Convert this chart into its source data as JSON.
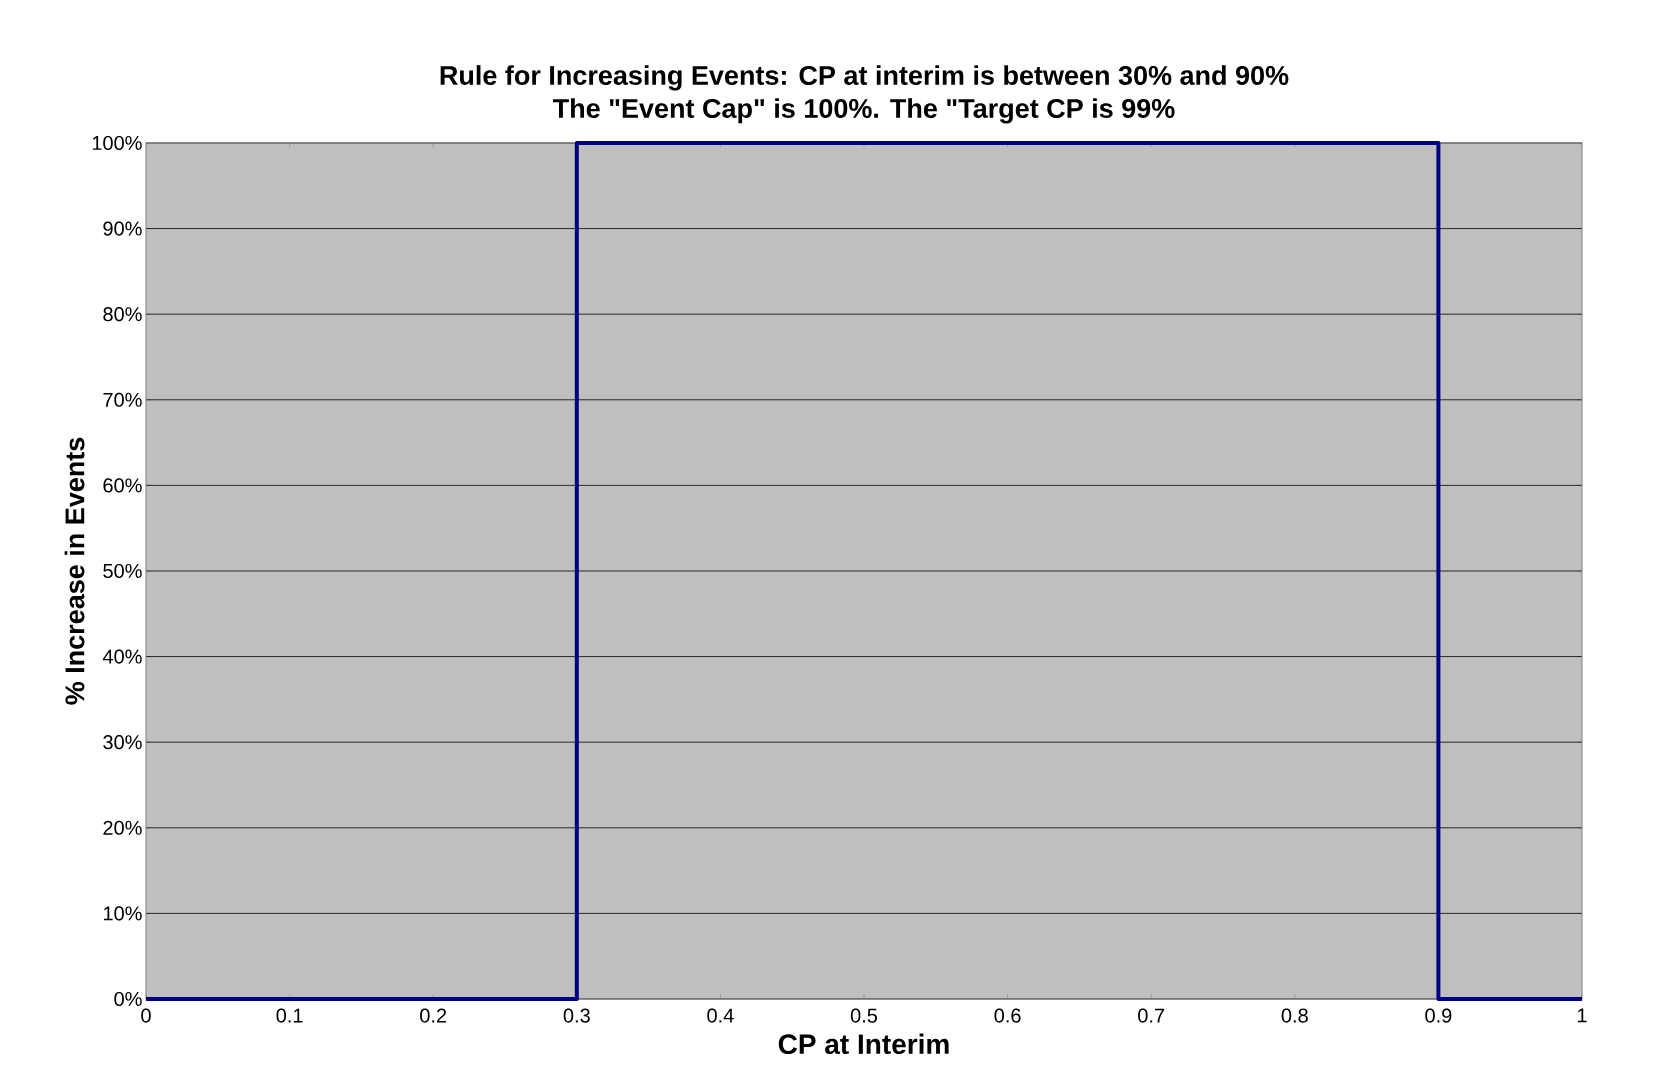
{
  "chart_data": {
    "type": "line",
    "title": "Rule for Increasing Events: CP at interim is between 30% and 90%",
    "subtitle": "The \"Event Cap\" is 100%. The \"Target CP is 99%",
    "xlabel": "CP at Interim",
    "ylabel": "% Increase in Events",
    "x": [
      0,
      0.3,
      0.3,
      0.9,
      0.9,
      1
    ],
    "series": [
      {
        "color": "#000080",
        "values": [
          0,
          0,
          100,
          100,
          0,
          0
        ]
      }
    ],
    "xlim": [
      0,
      1
    ],
    "xticks": [
      0,
      0.1,
      0.2,
      0.3,
      0.4,
      0.5,
      0.6,
      0.7,
      0.8,
      0.9,
      1
    ],
    "ylim": [
      0,
      100
    ],
    "yticks": [
      {
        "value": 0,
        "label": "0%"
      },
      {
        "value": 10,
        "label": "10%"
      },
      {
        "value": 20,
        "label": "20%"
      },
      {
        "value": 30,
        "label": "30%"
      },
      {
        "value": 40,
        "label": "40%"
      },
      {
        "value": 50,
        "label": "50%"
      },
      {
        "value": 60,
        "label": "60%"
      },
      {
        "value": 70,
        "label": "70%"
      },
      {
        "value": 80,
        "label": "80%"
      },
      {
        "value": 90,
        "label": "90%"
      },
      {
        "value": 100,
        "label": "100%"
      }
    ],
    "grid": "y"
  }
}
